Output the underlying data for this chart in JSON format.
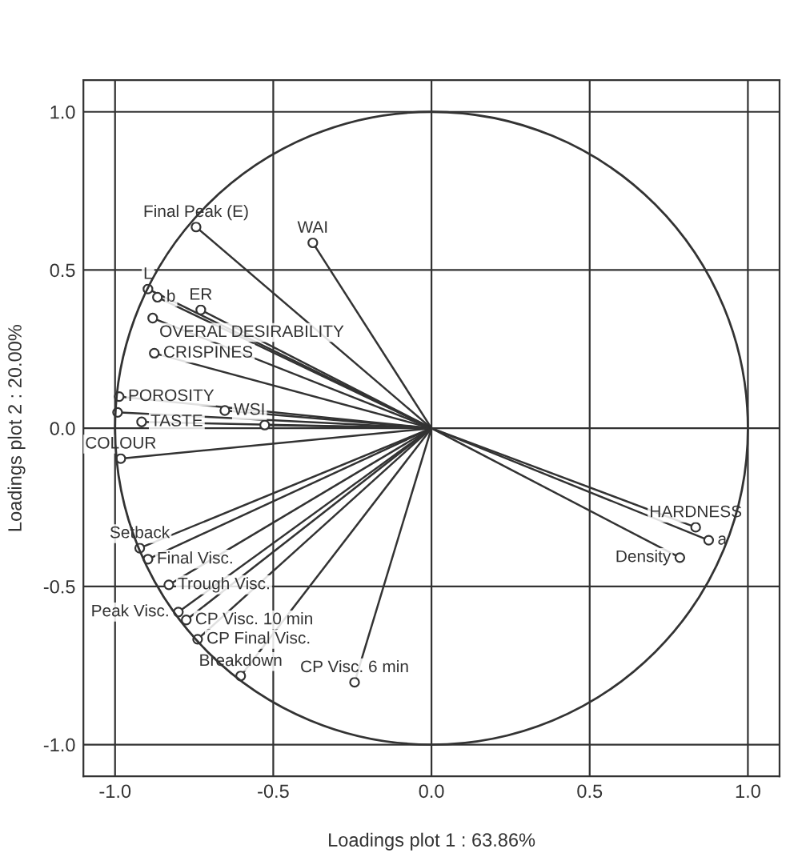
{
  "chart_data": {
    "type": "lollipop",
    "xlabel": "Loadings plot 1 : 63.86%",
    "ylabel": "Loadings plot 2 : 20.00%",
    "xlim": [
      -1.1,
      1.1
    ],
    "ylim": [
      -1.1,
      1.1
    ],
    "xticks": [
      {
        "value": -1,
        "label": "-1.0"
      },
      {
        "value": -0.5,
        "label": "-0.5"
      },
      {
        "value": 0,
        "label": "0.0"
      },
      {
        "value": 0.5,
        "label": "0.5"
      },
      {
        "value": 1,
        "label": "1.0"
      }
    ],
    "yticks": [
      {
        "value": -1,
        "label": "-1.0"
      },
      {
        "value": -0.5,
        "label": "-0.5"
      },
      {
        "value": 0,
        "label": "0.0"
      },
      {
        "value": 0.5,
        "label": "0.5"
      },
      {
        "value": 1,
        "label": "1.0"
      }
    ],
    "grid": true,
    "series": [
      {
        "color": "#333333",
        "marker": "circle",
        "x": [
          -0.744,
          -0.375,
          -0.896,
          -0.866,
          -0.729,
          -0.881,
          -0.876,
          -0.987,
          -0.992,
          -0.653,
          -0.916,
          -0.527,
          -0.982,
          -0.922,
          -0.896,
          -0.83,
          -0.8,
          -0.775,
          -0.739,
          -0.603,
          -0.243,
          0.835,
          0.876,
          0.785
        ],
        "values": [
          0.636,
          0.586,
          0.44,
          0.414,
          0.374,
          0.348,
          0.237,
          0.1,
          0.05,
          0.056,
          0.02,
          0.01,
          -0.096,
          -0.379,
          -0.414,
          -0.495,
          -0.581,
          -0.606,
          -0.667,
          -0.783,
          -0.803,
          -0.313,
          -0.354,
          -0.409
        ]
      }
    ],
    "annotations": [
      {
        "text": "Final Peak (E)",
        "x": -0.744,
        "y": 0.636
      },
      {
        "text": "WAI",
        "x": -0.375,
        "y": 0.586
      },
      {
        "text": "L",
        "x": -0.896,
        "y": 0.44
      },
      {
        "text": "b",
        "x": -0.866,
        "y": 0.414
      },
      {
        "text": "ER",
        "x": -0.729,
        "y": 0.374
      },
      {
        "text": "OVERAL DESIRABILITY",
        "x": -0.881,
        "y": 0.348
      },
      {
        "text": "CRISPINES",
        "x": -0.876,
        "y": 0.237
      },
      {
        "text": "POROSITY",
        "x": -0.987,
        "y": 0.1
      },
      {
        "text": "WSI",
        "x": -0.653,
        "y": 0.056
      },
      {
        "text": "TASTE",
        "x": -0.916,
        "y": 0.02
      },
      {
        "text": "COLOUR",
        "x": -0.982,
        "y": -0.096
      },
      {
        "text": "Setback",
        "x": -0.922,
        "y": -0.379
      },
      {
        "text": "Final Visc.",
        "x": -0.896,
        "y": -0.414
      },
      {
        "text": "Trough Visc.",
        "x": -0.83,
        "y": -0.495
      },
      {
        "text": "Peak Visc.",
        "x": -0.8,
        "y": -0.581
      },
      {
        "text": "CP Visc. 10 min",
        "x": -0.775,
        "y": -0.606
      },
      {
        "text": "CP Final Visc.",
        "x": -0.739,
        "y": -0.667
      },
      {
        "text": "Breakdown",
        "x": -0.603,
        "y": -0.783
      },
      {
        "text": "CP Visc. 6 min",
        "x": -0.243,
        "y": -0.803
      },
      {
        "text": "HARDNESS",
        "x": 0.835,
        "y": -0.313
      },
      {
        "text": "a",
        "x": 0.876,
        "y": -0.354
      },
      {
        "text": "Density",
        "x": 0.785,
        "y": -0.409
      }
    ]
  }
}
